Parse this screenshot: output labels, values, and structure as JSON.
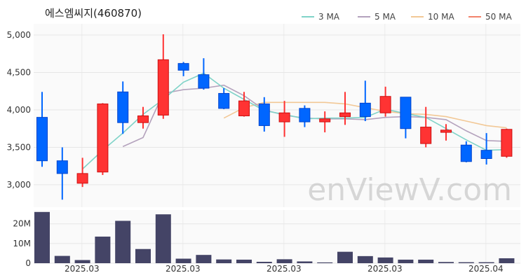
{
  "chart_data": {
    "type": "candlestick",
    "title": "에스엠씨지(460870)",
    "watermark": "enViewV.com",
    "price_ylim": [
      2700,
      5150
    ],
    "price_ticks": [
      {
        "v": 3000,
        "label": "3,000"
      },
      {
        "v": 3500,
        "label": "3,500"
      },
      {
        "v": 4000,
        "label": "4,000"
      },
      {
        "v": 4500,
        "label": "4,500"
      },
      {
        "v": 5000,
        "label": "5,000"
      }
    ],
    "volume_ylim": [
      0,
      27000000
    ],
    "volume_ticks": [
      {
        "v": 0,
        "label": "0"
      },
      {
        "v": 10000000,
        "label": "10M"
      },
      {
        "v": 20000000,
        "label": "20M"
      }
    ],
    "x_labels": [
      {
        "i": 1,
        "label": "2025.03"
      },
      {
        "i": 6,
        "label": "2025.03"
      },
      {
        "i": 11,
        "label": "2025.03"
      },
      {
        "i": 16,
        "label": "2025.03"
      },
      {
        "i": 21,
        "label": "2025.04"
      }
    ],
    "legend": [
      {
        "name": "3 MA",
        "color": "#7fd3c8"
      },
      {
        "name": "5 MA",
        "color": "#b4a2bd"
      },
      {
        "name": "10 MA",
        "color": "#f2c896"
      },
      {
        "name": "50 MA",
        "color": "#f2836b"
      }
    ],
    "up_color": "#ff3333",
    "down_color": "#0066ff",
    "volume_color": "#444466",
    "candles": [
      {
        "o": 3900,
        "h": 4240,
        "l": 3240,
        "c": 3320,
        "v": 26000000
      },
      {
        "o": 3320,
        "h": 3500,
        "l": 2800,
        "c": 3150,
        "v": 3700000
      },
      {
        "o": 3020,
        "h": 3360,
        "l": 2970,
        "c": 3150,
        "v": 1600000
      },
      {
        "o": 3170,
        "h": 4090,
        "l": 3130,
        "c": 4080,
        "v": 13500000
      },
      {
        "o": 4240,
        "h": 4380,
        "l": 3680,
        "c": 3830,
        "v": 21500000
      },
      {
        "o": 3830,
        "h": 4040,
        "l": 3750,
        "c": 3920,
        "v": 7200000
      },
      {
        "o": 3930,
        "h": 5010,
        "l": 3880,
        "c": 4670,
        "v": 24800000
      },
      {
        "o": 4620,
        "h": 4640,
        "l": 4450,
        "c": 4530,
        "v": 2300000
      },
      {
        "o": 4470,
        "h": 4690,
        "l": 4270,
        "c": 4290,
        "v": 4200000
      },
      {
        "o": 4220,
        "h": 4290,
        "l": 4010,
        "c": 4020,
        "v": 1900000
      },
      {
        "o": 3920,
        "h": 4240,
        "l": 3910,
        "c": 4120,
        "v": 1800000
      },
      {
        "o": 4080,
        "h": 4170,
        "l": 3710,
        "c": 3790,
        "v": 700000
      },
      {
        "o": 3840,
        "h": 4120,
        "l": 3640,
        "c": 3960,
        "v": 2000000
      },
      {
        "o": 4020,
        "h": 4060,
        "l": 3770,
        "c": 3840,
        "v": 900000
      },
      {
        "o": 3840,
        "h": 3980,
        "l": 3700,
        "c": 3880,
        "v": 400000
      },
      {
        "o": 3910,
        "h": 4240,
        "l": 3800,
        "c": 3960,
        "v": 5800000
      },
      {
        "o": 4090,
        "h": 4390,
        "l": 3850,
        "c": 3910,
        "v": 3600000
      },
      {
        "o": 3960,
        "h": 4310,
        "l": 3910,
        "c": 4180,
        "v": 2900000
      },
      {
        "o": 4170,
        "h": 4170,
        "l": 3620,
        "c": 3750,
        "v": 1800000
      },
      {
        "o": 3550,
        "h": 4040,
        "l": 3500,
        "c": 3770,
        "v": 1800000
      },
      {
        "o": 3700,
        "h": 3810,
        "l": 3590,
        "c": 3730,
        "v": 600000
      },
      {
        "o": 3530,
        "h": 3580,
        "l": 3300,
        "c": 3310,
        "v": 500000
      },
      {
        "o": 3460,
        "h": 3690,
        "l": 3270,
        "c": 3350,
        "v": 500000
      },
      {
        "o": 3380,
        "h": 3750,
        "l": 3360,
        "c": 3740,
        "v": 2500000
      }
    ],
    "ma3": [
      null,
      null,
      3210,
      3460,
      3690,
      3940,
      4140,
      4370,
      4490,
      4290,
      4140,
      3990,
      3940,
      3880,
      3890,
      3890,
      3900,
      4010,
      3950,
      3900,
      3750,
      3600,
      3460,
      3470
    ],
    "ma5": [
      null,
      null,
      null,
      null,
      3510,
      3630,
      4220,
      4270,
      4290,
      4330,
      4190,
      4000,
      3930,
      3890,
      3880,
      3880,
      3870,
      3900,
      3910,
      3900,
      3870,
      3720,
      3590,
      3580
    ],
    "ma10": [
      null,
      null,
      null,
      null,
      null,
      null,
      null,
      null,
      null,
      3890,
      4030,
      4100,
      4100,
      4100,
      4100,
      4080,
      4030,
      3980,
      3950,
      3940,
      3910,
      3850,
      3790,
      3760
    ],
    "ma50": []
  }
}
